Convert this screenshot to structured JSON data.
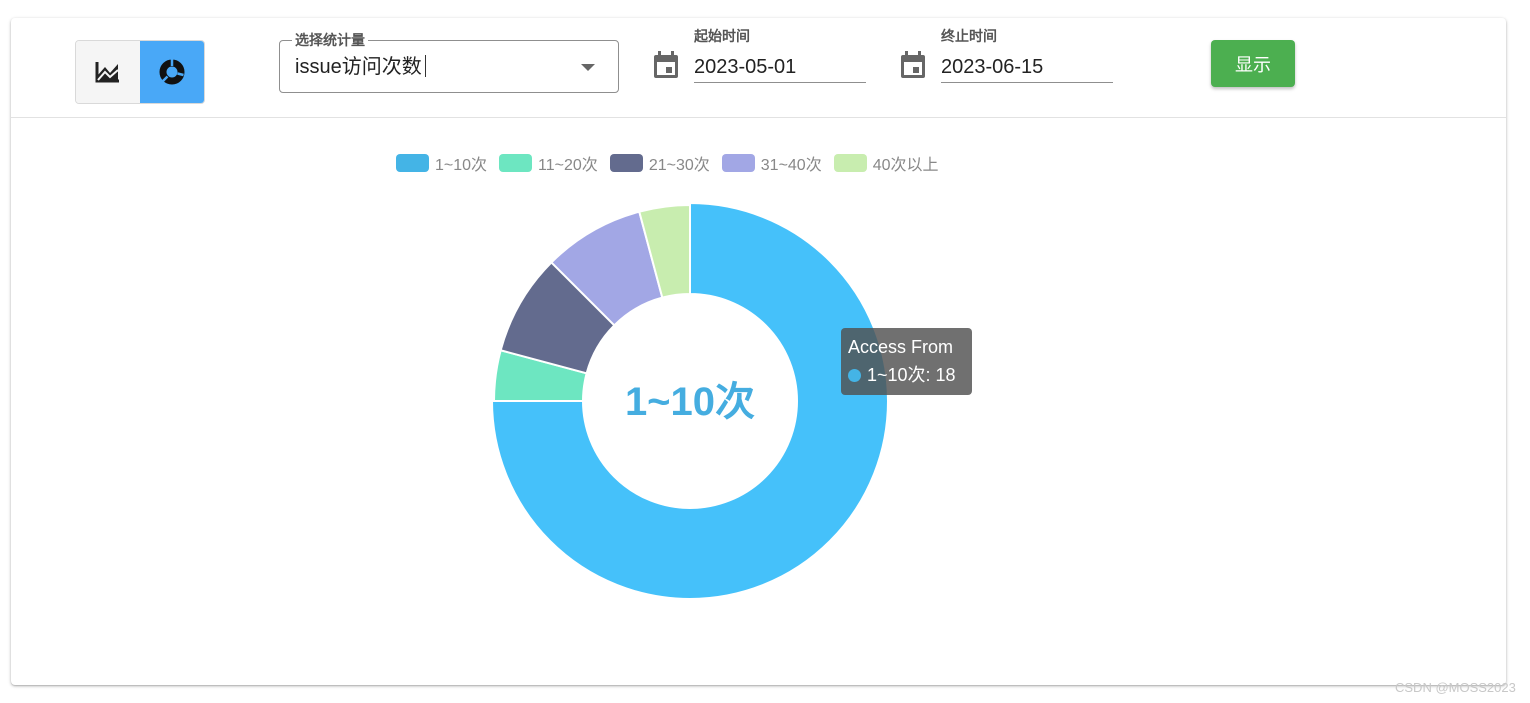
{
  "toolbar": {
    "chart_type_toggle": {
      "options": [
        {
          "icon": "area-chart-icon",
          "active": false
        },
        {
          "icon": "donut-chart-icon",
          "active": true
        }
      ]
    },
    "metric_select": {
      "label": "选择统计量",
      "value": "issue访问次数"
    },
    "start_date": {
      "label": "起始时间",
      "value": "2023-05-01",
      "icon": "calendar-icon"
    },
    "end_date": {
      "label": "终止时间",
      "value": "2023-06-15",
      "icon": "calendar-icon"
    },
    "show_button": {
      "label": "显示",
      "color": "#4caf50"
    }
  },
  "chart_data": {
    "type": "pie",
    "donut": true,
    "legend_position": "top-center",
    "categories": [
      "1~10次",
      "11~20次",
      "21~30次",
      "31~40次",
      "40次以上"
    ],
    "values": [
      18,
      1,
      2,
      2,
      1
    ],
    "colors": [
      "#45c1fa",
      "#6de6c1",
      "#636b8e",
      "#a2a7e5",
      "#c8edaf"
    ],
    "legend_colors": [
      "#44b4e6",
      "#6de6c1",
      "#636b8e",
      "#a2a7e5",
      "#c8edaf"
    ],
    "emphasized_index": 0,
    "center_label": "1~10次",
    "center_label_color": "#45ade0",
    "tooltip": {
      "title": "Access From",
      "item_label": "1~10次",
      "item_value": 18,
      "text": "1~10次: 18",
      "marker_color": "#44b4e6"
    }
  },
  "watermark": "CSDN @MOSS2023"
}
